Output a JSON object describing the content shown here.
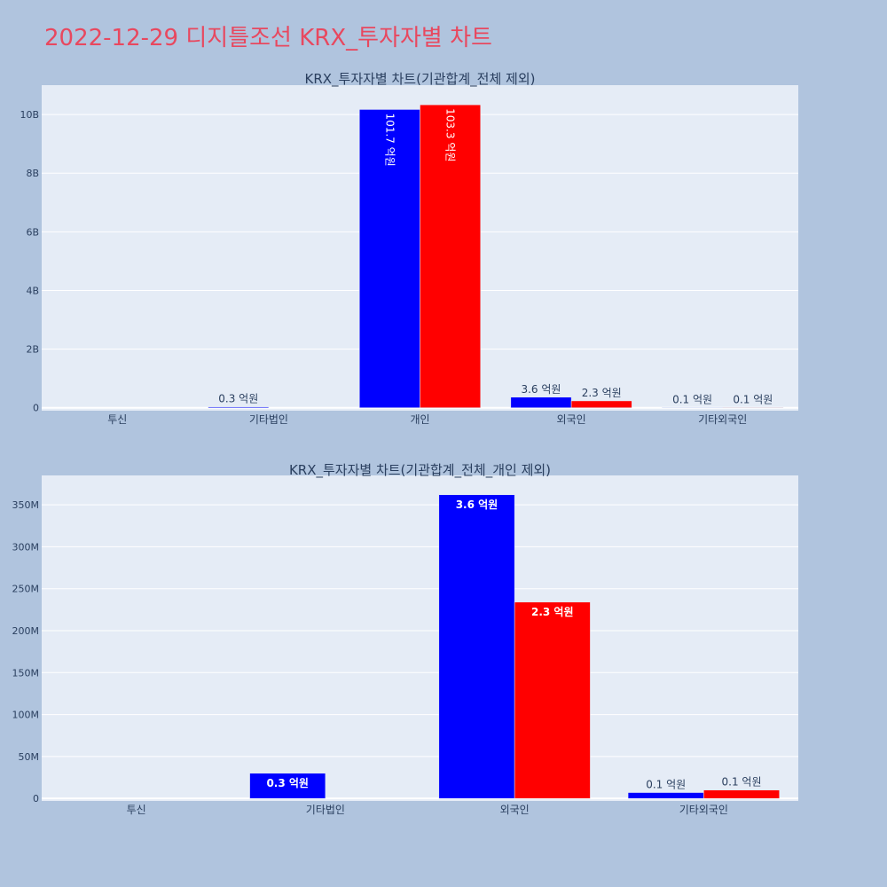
{
  "page": {
    "title": "2022-12-29 디지틀조선 KRX_투자자별 차트"
  },
  "colors": {
    "background": "#b0c4de",
    "plot_bg": "#e5ecf6",
    "title": "#e8485f",
    "series_a": "#0000ff",
    "series_b": "#ff0000",
    "text": "#2a3f5f"
  },
  "chart_data": [
    {
      "type": "bar",
      "title": "KRX_투자자별 차트(기관합계_전체 제외)",
      "categories": [
        "투신",
        "기타법인",
        "개인",
        "외국인",
        "기타외국인"
      ],
      "series": [
        {
          "color": "#0000ff",
          "values": [
            0,
            30000000,
            10170000000,
            360000000,
            7000000
          ],
          "labels": [
            "",
            "0.3 억원",
            "101.7 억원",
            "3.6 억원",
            "0.1 억원"
          ]
        },
        {
          "color": "#ff0000",
          "values": [
            0,
            0,
            10330000000,
            234000000,
            10000000
          ],
          "labels": [
            "",
            "",
            "103.3 억원",
            "2.3 억원",
            "0.1 억원"
          ]
        }
      ],
      "ylim": [
        -100000000,
        11000000000
      ],
      "yticks": [
        0,
        2000000000,
        4000000000,
        6000000000,
        8000000000,
        10000000000
      ],
      "ytick_labels": [
        "0",
        "2B",
        "4B",
        "6B",
        "8B",
        "10B"
      ],
      "grid": true
    },
    {
      "type": "bar",
      "title": "KRX_투자자별 차트(기관합계_전체_개인 제외)",
      "categories": [
        "투신",
        "기타법인",
        "외국인",
        "기타외국인"
      ],
      "series": [
        {
          "color": "#0000ff",
          "values": [
            0,
            30000000,
            362000000,
            7000000
          ],
          "labels": [
            "",
            "0.3 억원",
            "3.6 억원",
            "0.1 억원"
          ]
        },
        {
          "color": "#ff0000",
          "values": [
            0,
            0,
            234000000,
            10000000
          ],
          "labels": [
            "",
            "",
            "2.3 억원",
            "0.1 억원"
          ]
        }
      ],
      "ylim": [
        -3000000,
        385000000
      ],
      "yticks": [
        0,
        50000000,
        100000000,
        150000000,
        200000000,
        250000000,
        300000000,
        350000000
      ],
      "ytick_labels": [
        "0",
        "50M",
        "100M",
        "150M",
        "200M",
        "250M",
        "300M",
        "350M"
      ],
      "grid": true
    }
  ]
}
